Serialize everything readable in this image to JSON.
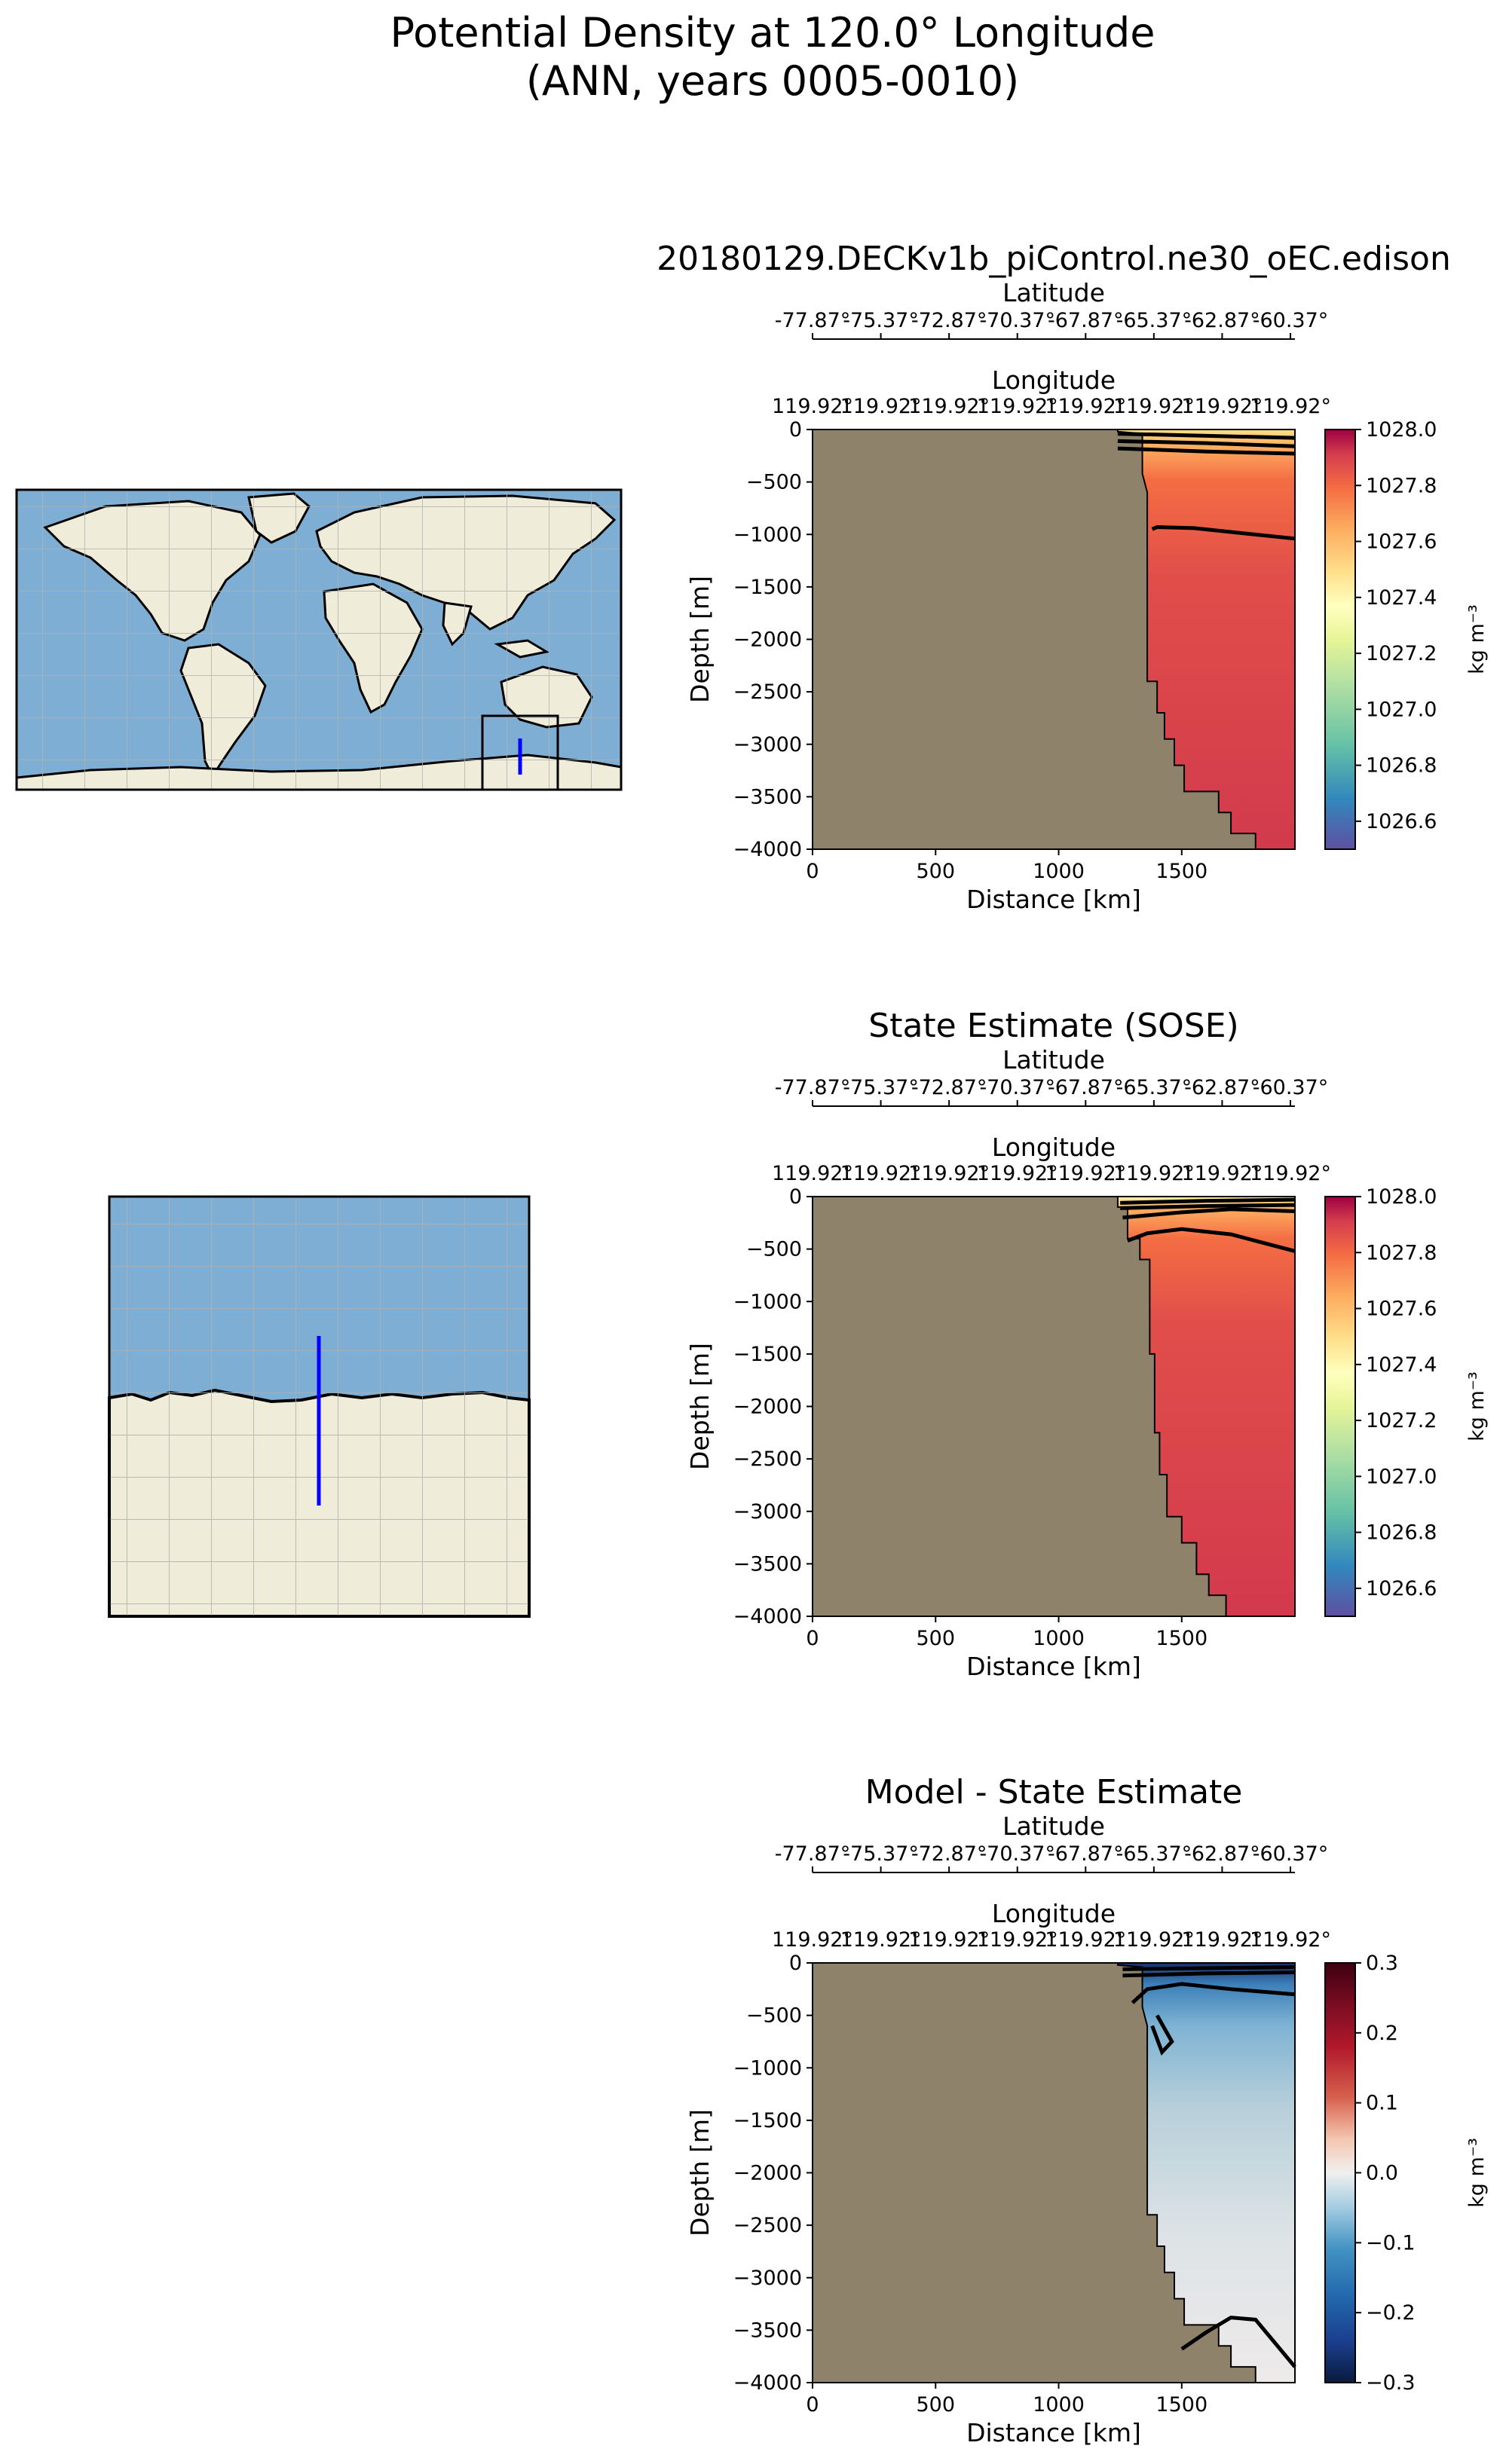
{
  "figure": {
    "title_line1": "Potential Density at 120.0° Longitude",
    "title_line2": "(ANN, years 0005-0010)"
  },
  "colors": {
    "land": "#8f826a",
    "ocean_map": "#7faed4",
    "land_map": "#efecd9",
    "transect": "#0000ff",
    "contour": "#000000"
  },
  "chart_data": [
    {
      "type": "heatmap",
      "name": "model",
      "title": "20180129.DECKv1b_piControl.ne30_oEC.edison",
      "xlabel": "Distance [km]",
      "ylabel": "Depth [m]",
      "xlim": [
        0,
        1960
      ],
      "ylim": [
        -4000,
        0
      ],
      "x_ticks": [
        0,
        500,
        1000,
        1500
      ],
      "x_ticklabels": [
        "0",
        "500",
        "1000",
        "1500"
      ],
      "y_ticks": [
        0,
        -500,
        -1000,
        -1500,
        -2000,
        -2500,
        -3000,
        -3500,
        -4000
      ],
      "y_ticklabels": [
        "0",
        "−500",
        "−1000",
        "−1500",
        "−2000",
        "−2500",
        "−3000",
        "−3500",
        "−4000"
      ],
      "lat_axis": {
        "label": "Latitude",
        "ticklabels": [
          "-77.87°",
          "-75.37°",
          "-72.87°",
          "-70.37°",
          "-67.87°",
          "-65.37°",
          "-62.87°",
          "-60.37°"
        ]
      },
      "lon_axis": {
        "label": "Longitude",
        "ticklabels": [
          "119.92°",
          "119.92°",
          "119.92°",
          "119.92°",
          "119.92°",
          "119.92°",
          "119.92°",
          "119.92°"
        ]
      },
      "colorbar": {
        "label": "kg m⁻³",
        "range": [
          1026.5,
          1028.0
        ],
        "ticks": [
          "1028.0",
          "1027.8",
          "1027.6",
          "1027.4",
          "1027.2",
          "1027.0",
          "1026.8",
          "1026.6"
        ]
      },
      "bathymetry": [
        [
          1240,
          0
        ],
        [
          1240,
          -20
        ],
        [
          1340,
          -40
        ],
        [
          1340,
          -420
        ],
        [
          1360,
          -600
        ],
        [
          1360,
          -4000
        ]
      ],
      "bathy_deep": [
        [
          1360,
          -2400
        ],
        [
          1400,
          -2400
        ],
        [
          1400,
          -2700
        ],
        [
          1430,
          -2700
        ],
        [
          1430,
          -2950
        ],
        [
          1470,
          -2950
        ],
        [
          1470,
          -3200
        ],
        [
          1510,
          -3200
        ],
        [
          1510,
          -3450
        ],
        [
          1650,
          -3450
        ],
        [
          1650,
          -3650
        ],
        [
          1700,
          -3650
        ],
        [
          1700,
          -3850
        ],
        [
          1800,
          -3850
        ],
        [
          1800,
          -4000
        ]
      ],
      "contours": [
        [
          [
            1240,
            -40
          ],
          [
            1600,
            -60
          ],
          [
            1960,
            -80
          ]
        ],
        [
          [
            1240,
            -110
          ],
          [
            1600,
            -130
          ],
          [
            1960,
            -160
          ]
        ],
        [
          [
            1240,
            -180
          ],
          [
            1600,
            -210
          ],
          [
            1960,
            -230
          ]
        ],
        [
          [
            1380,
            -950
          ],
          [
            1400,
            -930
          ],
          [
            1550,
            -940
          ],
          [
            1960,
            -1040
          ]
        ]
      ]
    },
    {
      "type": "heatmap",
      "name": "sose",
      "title": "State Estimate (SOSE)",
      "xlabel": "Distance [km]",
      "ylabel": "Depth [m]",
      "xlim": [
        0,
        1960
      ],
      "ylim": [
        -4000,
        0
      ],
      "x_ticks": [
        0,
        500,
        1000,
        1500
      ],
      "x_ticklabels": [
        "0",
        "500",
        "1000",
        "1500"
      ],
      "y_ticks": [
        0,
        -500,
        -1000,
        -1500,
        -2000,
        -2500,
        -3000,
        -3500,
        -4000
      ],
      "y_ticklabels": [
        "0",
        "−500",
        "−1000",
        "−1500",
        "−2000",
        "−2500",
        "−3000",
        "−3500",
        "−4000"
      ],
      "lat_axis": {
        "label": "Latitude",
        "ticklabels": [
          "-77.87°",
          "-75.37°",
          "-72.87°",
          "-70.37°",
          "-67.87°",
          "-65.37°",
          "-62.87°",
          "-60.37°"
        ]
      },
      "lon_axis": {
        "label": "Longitude",
        "ticklabels": [
          "119.92°",
          "119.92°",
          "119.92°",
          "119.92°",
          "119.92°",
          "119.92°",
          "119.92°",
          "119.92°"
        ]
      },
      "colorbar": {
        "label": "kg m⁻³",
        "range": [
          1026.5,
          1028.0
        ],
        "ticks": [
          "1028.0",
          "1027.8",
          "1027.6",
          "1027.4",
          "1027.2",
          "1027.0",
          "1026.8",
          "1026.6"
        ]
      },
      "contours": [
        [
          [
            1250,
            -60
          ],
          [
            1600,
            -40
          ],
          [
            1960,
            -30
          ]
        ],
        [
          [
            1250,
            -110
          ],
          [
            1600,
            -90
          ],
          [
            1960,
            -80
          ]
        ],
        [
          [
            1260,
            -200
          ],
          [
            1500,
            -150
          ],
          [
            1700,
            -120
          ],
          [
            1960,
            -140
          ]
        ],
        [
          [
            1280,
            -420
          ],
          [
            1360,
            -350
          ],
          [
            1500,
            -310
          ],
          [
            1700,
            -360
          ],
          [
            1960,
            -520
          ]
        ]
      ]
    },
    {
      "type": "heatmap",
      "name": "difference",
      "title": "Model - State Estimate",
      "xlabel": "Distance [km]",
      "ylabel": "Depth [m]",
      "xlim": [
        0,
        1960
      ],
      "ylim": [
        -4000,
        0
      ],
      "x_ticks": [
        0,
        500,
        1000,
        1500
      ],
      "x_ticklabels": [
        "0",
        "500",
        "1000",
        "1500"
      ],
      "y_ticks": [
        0,
        -500,
        -1000,
        -1500,
        -2000,
        -2500,
        -3000,
        -3500,
        -4000
      ],
      "y_ticklabels": [
        "0",
        "−500",
        "−1000",
        "−1500",
        "−2000",
        "−2500",
        "−3000",
        "−3500",
        "−4000"
      ],
      "lat_axis": {
        "label": "Latitude",
        "ticklabels": [
          "-77.87°",
          "-75.37°",
          "-72.87°",
          "-70.37°",
          "-67.87°",
          "-65.37°",
          "-62.87°",
          "-60.37°"
        ]
      },
      "lon_axis": {
        "label": "Longitude",
        "ticklabels": [
          "119.92°",
          "119.92°",
          "119.92°",
          "119.92°",
          "119.92°",
          "119.92°",
          "119.92°",
          "119.92°"
        ]
      },
      "colorbar": {
        "label": "kg m⁻³",
        "range": [
          -0.3,
          0.3
        ],
        "ticks": [
          "0.3",
          "0.2",
          "0.1",
          "0.0",
          "−0.1",
          "−0.2",
          "−0.3"
        ]
      },
      "contours": [
        [
          [
            1260,
            -60
          ],
          [
            1600,
            -50
          ],
          [
            1960,
            -40
          ]
        ],
        [
          [
            1260,
            -120
          ],
          [
            1600,
            -100
          ],
          [
            1960,
            -90
          ]
        ],
        [
          [
            1300,
            -380
          ],
          [
            1360,
            -250
          ],
          [
            1500,
            -200
          ],
          [
            1700,
            -250
          ],
          [
            1960,
            -300
          ]
        ],
        [
          [
            1400,
            -500
          ],
          [
            1460,
            -750
          ],
          [
            1420,
            -850
          ],
          [
            1380,
            -600
          ]
        ],
        [
          [
            1500,
            -3680
          ],
          [
            1600,
            -3520
          ],
          [
            1700,
            -3380
          ],
          [
            1800,
            -3400
          ],
          [
            1960,
            -3850
          ]
        ]
      ]
    }
  ]
}
